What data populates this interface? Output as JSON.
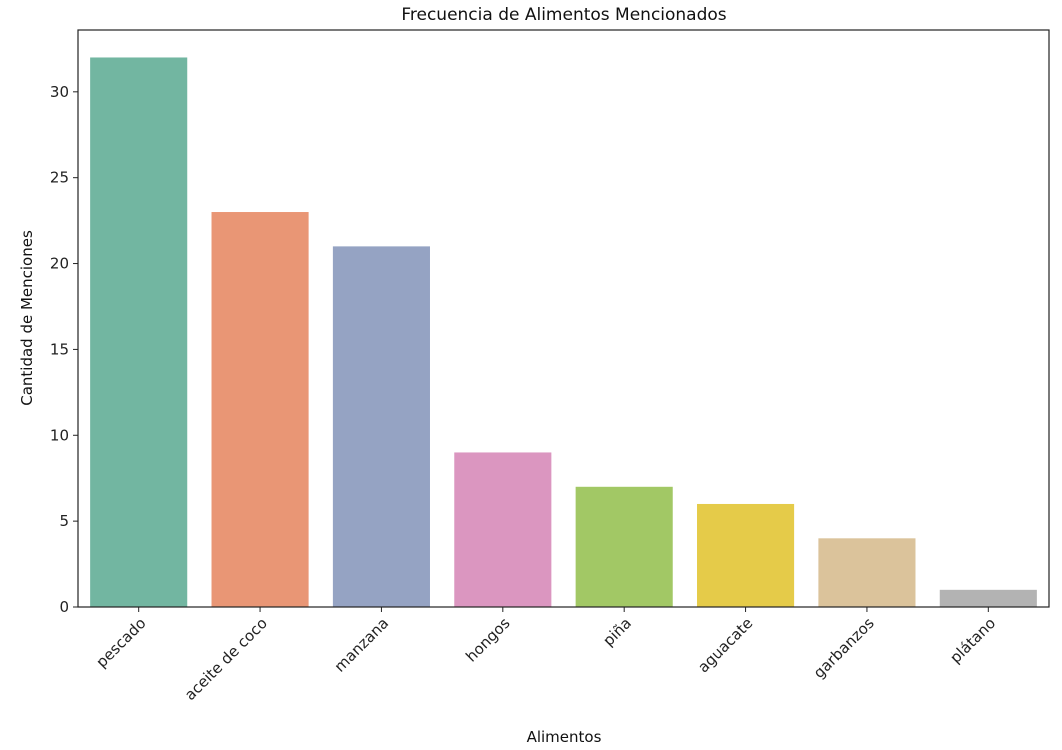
{
  "chart_data": {
    "type": "bar",
    "title": "Frecuencia de Alimentos Mencionados",
    "xlabel": "Alimentos",
    "ylabel": "Cantidad de Menciones",
    "categories": [
      "pescado",
      "aceite de coco",
      "manzana",
      "hongos",
      "piña",
      "aguacate",
      "garbanzos",
      "plátano"
    ],
    "values": [
      32,
      23,
      21,
      9,
      7,
      6,
      4,
      1
    ],
    "colors": [
      "#72b6a1",
      "#e99675",
      "#95a3c3",
      "#db96c0",
      "#a2c865",
      "#e5cb49",
      "#dbc39b",
      "#b3b3b3"
    ],
    "ylim": [
      0,
      33.6
    ],
    "yticks": [
      0,
      5,
      10,
      15,
      20,
      25,
      30
    ],
    "grid": false,
    "legend": "none"
  }
}
